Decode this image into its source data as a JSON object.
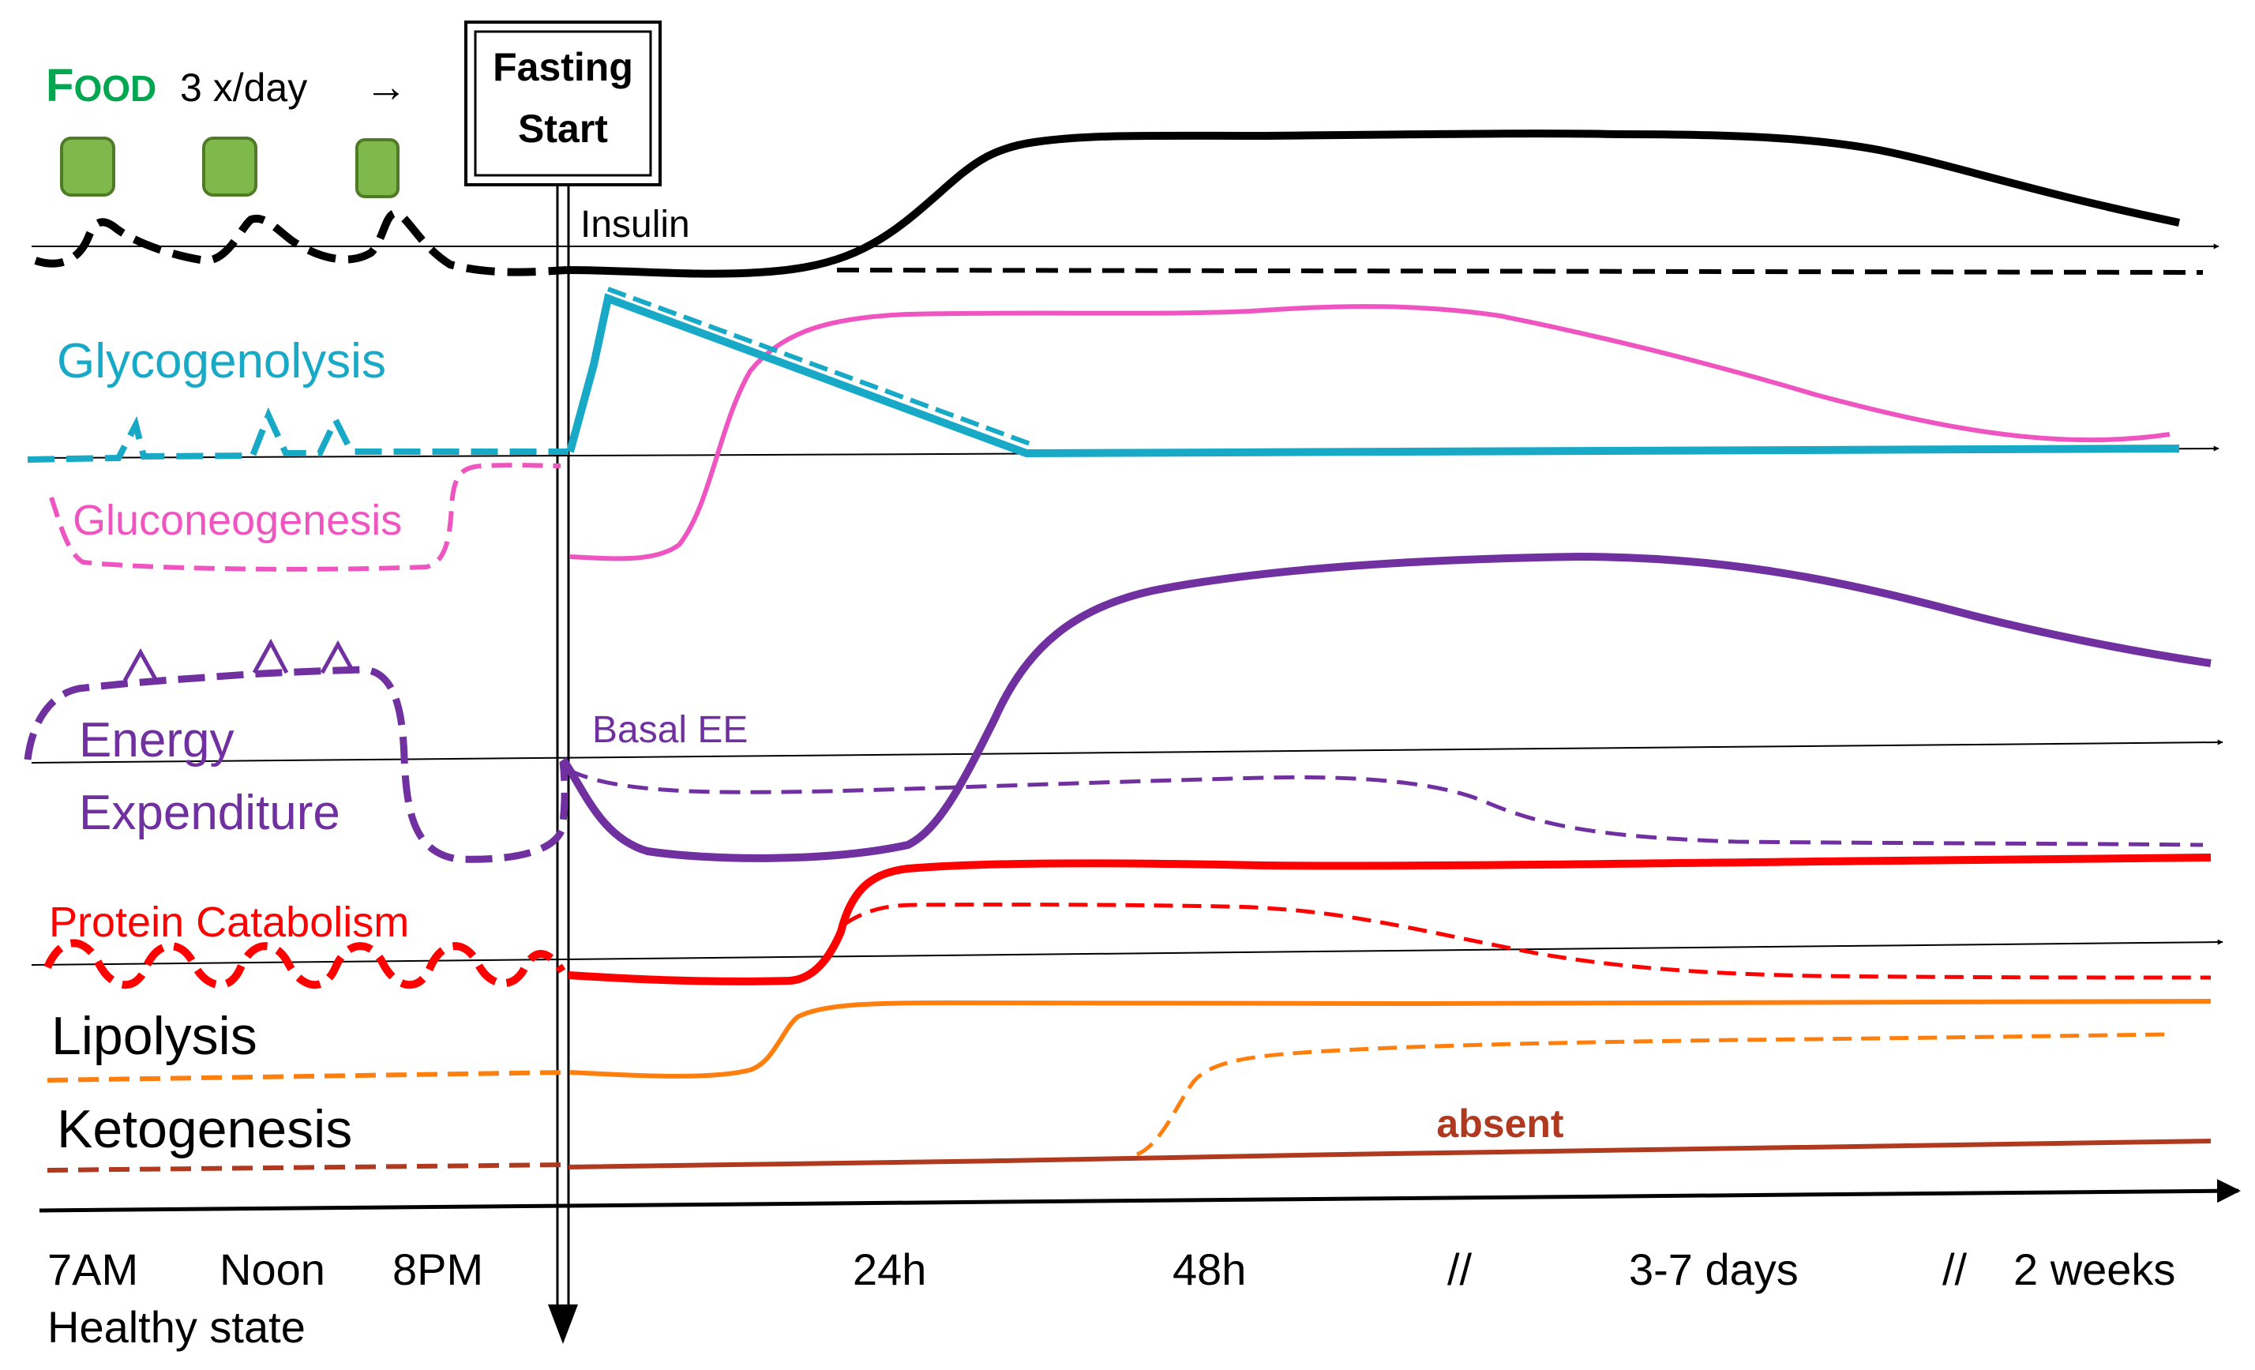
{
  "food": {
    "word_first": "F",
    "word_rest": "OOD",
    "freq": "3 x/day",
    "arrow": "→"
  },
  "fasting_box": {
    "line1": "Fasting",
    "line2": "Start"
  },
  "labels": {
    "insulin": "Insulin",
    "glycogenolysis": "Glycogenolysis",
    "gluconeogenesis": "Gluconeogenesis",
    "energy1": "Energy",
    "energy2": "Expenditure",
    "basal_ee": "Basal EE",
    "protein": "Protein Catabolism",
    "lipolysis": "Lipolysis",
    "ketogenesis": "Ketogenesis",
    "absent": "absent"
  },
  "time_axis": {
    "ticks": [
      "7AM",
      "Noon",
      "8PM",
      "24h",
      "48h",
      "//",
      "3-7 days",
      "//",
      "2 weeks"
    ],
    "healthy_state": "Healthy state"
  },
  "colors": {
    "food_green": "#00a650",
    "food_box": "#7fb84b",
    "insulin": "#000000",
    "glycogenolysis": "#18a9c7",
    "gluconeogenesis": "#ee55c0",
    "energy": "#7030a0",
    "protein": "#ff0000",
    "lipolysis": "#ff7f0e",
    "ketogenesis": "#b03a20"
  }
}
